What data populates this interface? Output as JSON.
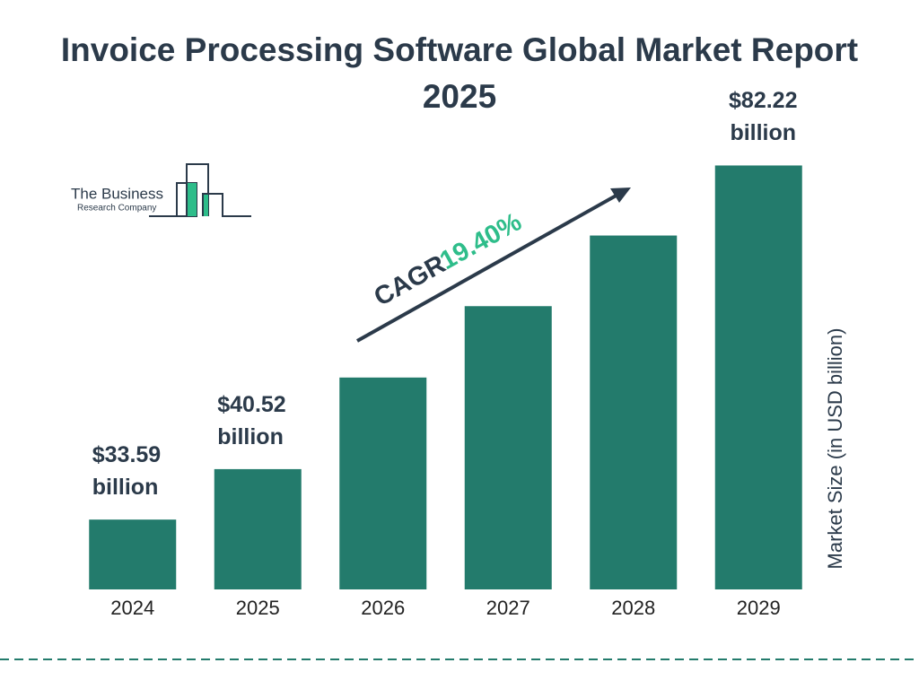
{
  "chart_data": {
    "type": "bar",
    "title": "Invoice Processing Software Global Market Report 2025",
    "categories": [
      "2024",
      "2025",
      "2026",
      "2027",
      "2028",
      "2029"
    ],
    "values": [
      33.59,
      40.52,
      53.1,
      62.9,
      72.6,
      82.22
    ],
    "value_labels": [
      "$33.59 billion",
      "$40.52 billion",
      null,
      null,
      null,
      "$82.22 billion"
    ],
    "color": "#237b6c",
    "ylim": [
      24,
      84
    ],
    "y_axis_label": "Market Size (in USD billion)",
    "annotation": {
      "label": "CAGR",
      "value": "19.40%"
    },
    "logo": {
      "line1": "The Business",
      "line2": "Research Company"
    }
  }
}
